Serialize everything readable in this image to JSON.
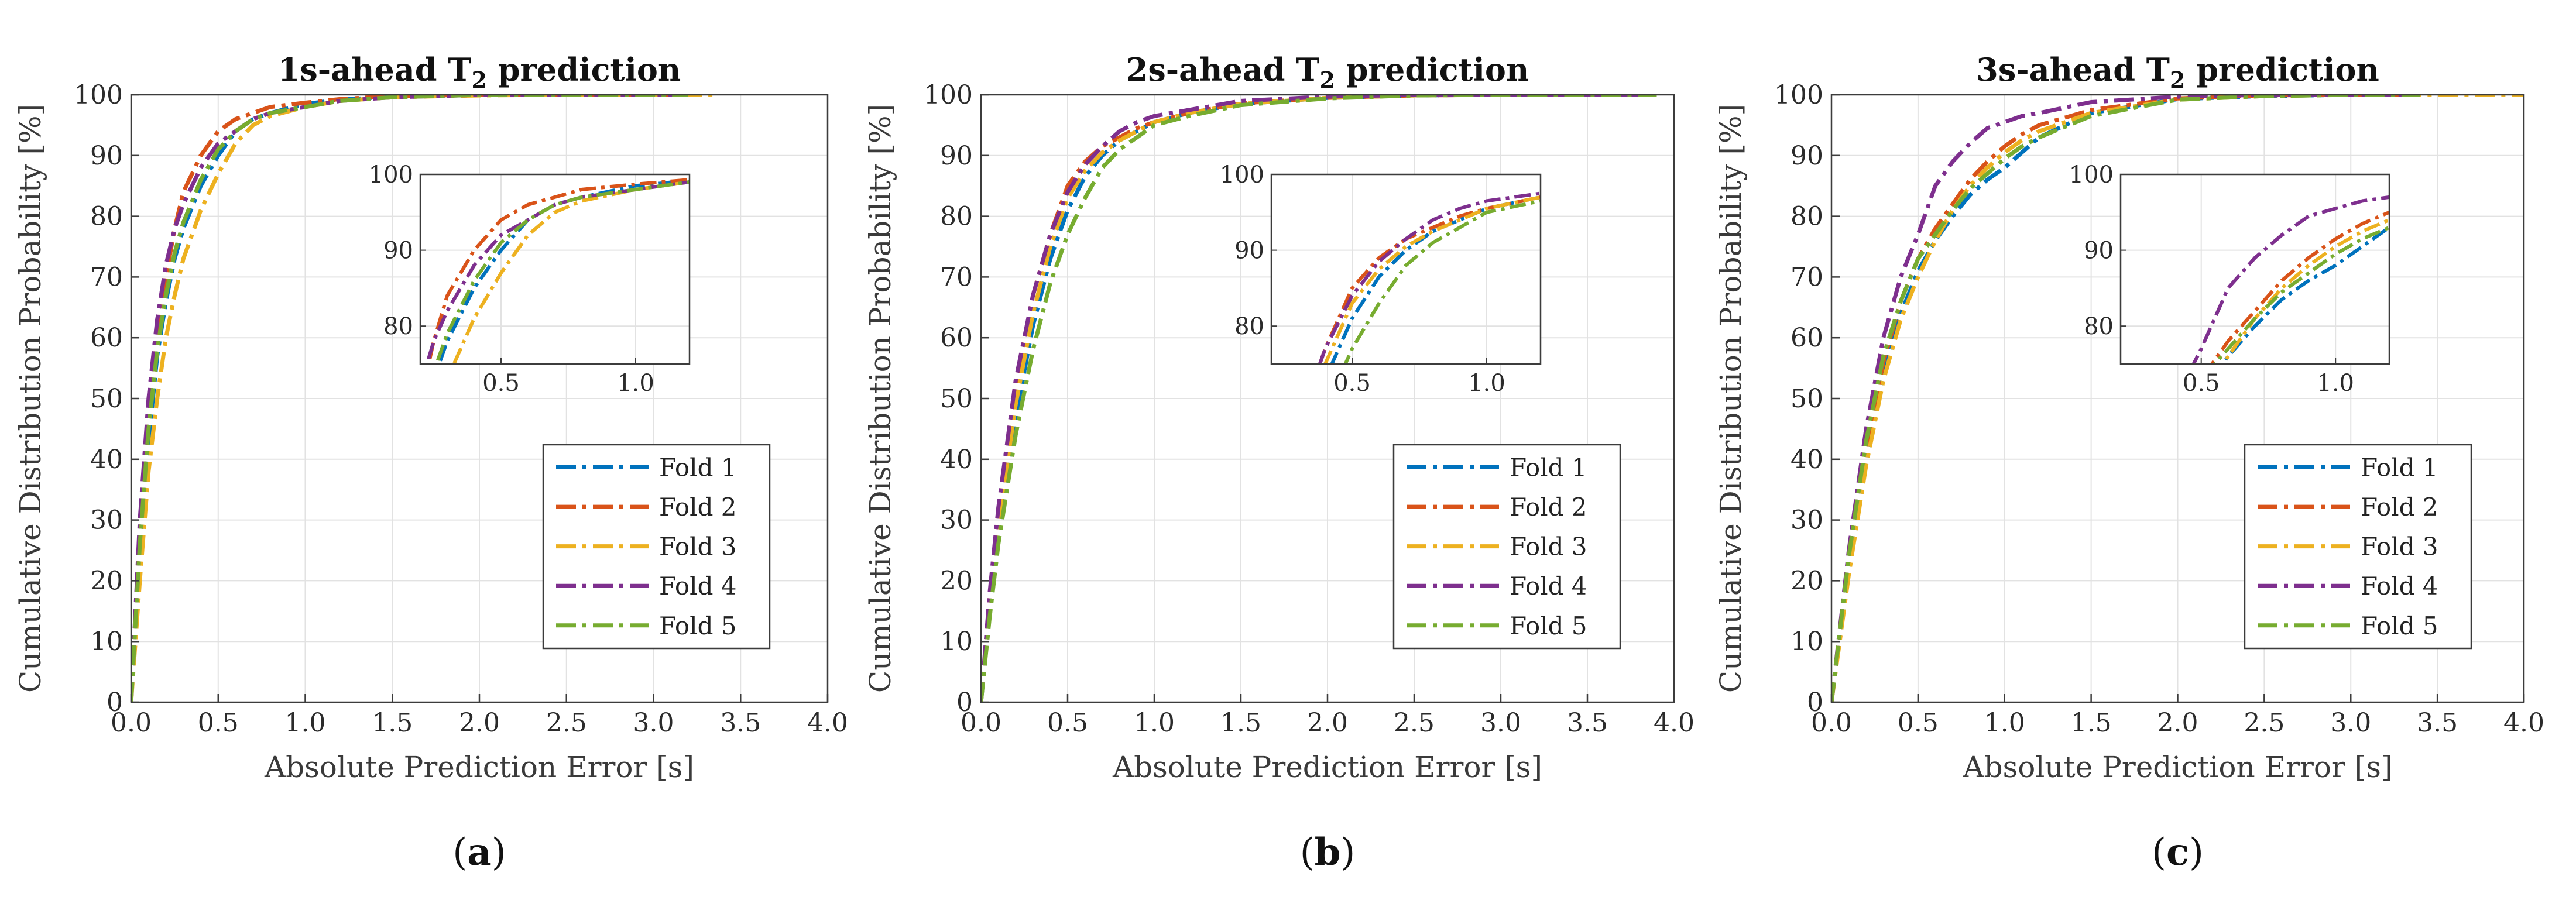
{
  "chart_data": [
    {
      "type": "line",
      "panel_label_prefix": "(",
      "panel_label": "a",
      "panel_label_suffix": ")",
      "title_prefix": "1s-ahead T",
      "title_sub": "2",
      "title_suffix": " prediction",
      "xlabel": "Absolute Prediction Error [s]",
      "ylabel": "Cumulative Distribution Probability [%]",
      "xlim": [
        0,
        4
      ],
      "ylim": [
        0,
        100
      ],
      "xticks": [
        "0.0",
        "0.5",
        "1.0",
        "1.5",
        "2.0",
        "2.5",
        "3.0",
        "3.5",
        "4.0"
      ],
      "yticks": [
        "0",
        "10",
        "20",
        "30",
        "40",
        "50",
        "60",
        "70",
        "80",
        "90",
        "100"
      ],
      "legend_position": "lower-right",
      "series": [
        {
          "name": "Fold 1",
          "color": "#0072BD",
          "x": [
            0,
            0.05,
            0.1,
            0.15,
            0.2,
            0.25,
            0.3,
            0.4,
            0.5,
            0.6,
            0.7,
            0.8,
            1.0,
            1.2,
            1.5,
            2.0,
            2.5,
            3.2
          ],
          "y": [
            0,
            25,
            43,
            57,
            66,
            73,
            78,
            85,
            90,
            94,
            96,
            97,
            98.5,
            99.2,
            99.7,
            100,
            100,
            100
          ]
        },
        {
          "name": "Fold 2",
          "color": "#D95319",
          "x": [
            0,
            0.05,
            0.1,
            0.15,
            0.2,
            0.25,
            0.3,
            0.4,
            0.5,
            0.6,
            0.7,
            0.8,
            1.0,
            1.2,
            1.5,
            2.0,
            2.5,
            3.2
          ],
          "y": [
            0,
            27,
            47,
            60,
            70,
            78,
            84,
            90,
            94,
            96,
            97,
            98,
            98.7,
            99.3,
            99.8,
            100,
            100,
            100
          ]
        },
        {
          "name": "Fold 3",
          "color": "#EDB120",
          "x": [
            0,
            0.05,
            0.1,
            0.15,
            0.2,
            0.25,
            0.3,
            0.4,
            0.5,
            0.6,
            0.7,
            0.8,
            1.0,
            1.2,
            1.5,
            2.0,
            2.5,
            3.35
          ],
          "y": [
            0,
            20,
            38,
            50,
            60,
            67,
            73,
            81,
            87,
            92,
            95,
            96.5,
            98,
            99,
            99.6,
            99.9,
            100,
            100
          ]
        },
        {
          "name": "Fold 4",
          "color": "#7E2F8E",
          "x": [
            0,
            0.05,
            0.1,
            0.15,
            0.2,
            0.25,
            0.3,
            0.4,
            0.5,
            0.6,
            0.7,
            0.8,
            1.0,
            1.2,
            1.5,
            2.0,
            2.5,
            3.2
          ],
          "y": [
            0,
            30,
            50,
            63,
            72,
            78,
            82,
            88,
            92,
            94,
            96,
            97,
            98,
            99,
            99.6,
            100,
            100,
            100
          ]
        },
        {
          "name": "Fold 5",
          "color": "#77AC30",
          "x": [
            0,
            0.05,
            0.1,
            0.15,
            0.2,
            0.25,
            0.3,
            0.4,
            0.5,
            0.6,
            0.7,
            0.8,
            1.0,
            1.2,
            1.5,
            2.0,
            2.5,
            3.2
          ],
          "y": [
            0,
            26,
            45,
            58,
            67,
            74,
            79,
            86,
            91,
            94,
            96,
            97,
            98,
            99,
            99.6,
            100,
            100,
            100
          ]
        }
      ],
      "inset": {
        "xlim": [
          0.2,
          1.2
        ],
        "ylim": [
          75,
          100
        ],
        "xticks": [
          {
            "v": 0.5,
            "label": "0.5"
          },
          {
            "v": 1.0,
            "label": "1.0"
          }
        ],
        "yticks": [
          {
            "v": 80,
            "label": "80"
          },
          {
            "v": 90,
            "label": "90"
          },
          {
            "v": 100,
            "label": "100"
          }
        ]
      }
    },
    {
      "type": "line",
      "panel_label_prefix": "(",
      "panel_label": "b",
      "panel_label_suffix": ")",
      "title_prefix": "2s-ahead T",
      "title_sub": "2",
      "title_suffix": " prediction",
      "xlabel": "Absolute Prediction Error [s]",
      "ylabel": "Cumulative Distribution Probability [%]",
      "xlim": [
        0,
        4
      ],
      "ylim": [
        0,
        100
      ],
      "xticks": [
        "0.0",
        "0.5",
        "1.0",
        "1.5",
        "2.0",
        "2.5",
        "3.0",
        "3.5",
        "4.0"
      ],
      "yticks": [
        "0",
        "10",
        "20",
        "30",
        "40",
        "50",
        "60",
        "70",
        "80",
        "90",
        "100"
      ],
      "legend_position": "lower-right",
      "series": [
        {
          "name": "Fold 1",
          "color": "#0072BD",
          "x": [
            0,
            0.05,
            0.1,
            0.2,
            0.3,
            0.4,
            0.5,
            0.6,
            0.7,
            0.8,
            0.9,
            1.0,
            1.2,
            1.5,
            2.0,
            2.5,
            3.0,
            3.9
          ],
          "y": [
            0,
            15,
            28,
            47,
            62,
            73,
            81,
            86.5,
            90,
            92.5,
            94,
            95.5,
            97,
            98.5,
            99.5,
            99.9,
            100,
            100
          ]
        },
        {
          "name": "Fold 2",
          "color": "#D95319",
          "x": [
            0,
            0.05,
            0.1,
            0.2,
            0.3,
            0.4,
            0.5,
            0.6,
            0.7,
            0.8,
            0.9,
            1.0,
            1.2,
            1.5,
            2.0,
            2.5,
            3.0,
            3.9
          ],
          "y": [
            0,
            17,
            31,
            52,
            67,
            77,
            85,
            89,
            91.5,
            93,
            94.5,
            95.5,
            97,
            98.6,
            99.5,
            99.9,
            100,
            100
          ]
        },
        {
          "name": "Fold 3",
          "color": "#EDB120",
          "x": [
            0,
            0.05,
            0.1,
            0.2,
            0.3,
            0.4,
            0.5,
            0.6,
            0.7,
            0.8,
            0.9,
            1.0,
            1.2,
            1.5,
            2.0,
            2.5,
            3.0,
            3.9
          ],
          "y": [
            0,
            16,
            29,
            49,
            64,
            75,
            83,
            87.5,
            90.5,
            92.5,
            94,
            95.5,
            97,
            98.5,
            99.5,
            99.9,
            100,
            100
          ]
        },
        {
          "name": "Fold 4",
          "color": "#7E2F8E",
          "x": [
            0,
            0.05,
            0.1,
            0.2,
            0.3,
            0.4,
            0.5,
            0.6,
            0.7,
            0.8,
            0.9,
            1.0,
            1.2,
            1.5,
            2.0,
            2.5,
            3.0,
            3.9
          ],
          "y": [
            0,
            18,
            32,
            53,
            67,
            77,
            84,
            88.5,
            91.5,
            94,
            95.5,
            96.5,
            97.5,
            99,
            99.7,
            100,
            100,
            100
          ]
        },
        {
          "name": "Fold 5",
          "color": "#77AC30",
          "x": [
            0,
            0.05,
            0.1,
            0.2,
            0.3,
            0.4,
            0.5,
            0.6,
            0.7,
            0.8,
            0.9,
            1.0,
            1.2,
            1.5,
            2.0,
            2.5,
            3.0,
            3.9
          ],
          "y": [
            0,
            14,
            26,
            44,
            58,
            69,
            77,
            83,
            88,
            91,
            93,
            95,
            96.5,
            98.3,
            99.4,
            99.9,
            100,
            100
          ]
        }
      ],
      "inset": {
        "xlim": [
          0.2,
          1.2
        ],
        "ylim": [
          75,
          100
        ],
        "xticks": [
          {
            "v": 0.5,
            "label": "0.5"
          },
          {
            "v": 1.0,
            "label": "1.0"
          }
        ],
        "yticks": [
          {
            "v": 80,
            "label": "80"
          },
          {
            "v": 90,
            "label": "90"
          },
          {
            "v": 100,
            "label": "100"
          }
        ]
      }
    },
    {
      "type": "line",
      "panel_label_prefix": "(",
      "panel_label": "c",
      "panel_label_suffix": ")",
      "title_prefix": "3s-ahead T",
      "title_sub": "2",
      "title_suffix": " prediction",
      "xlabel": "Absolute Prediction Error [s]",
      "ylabel": "Cumulative Distribution Probability [%]",
      "xlim": [
        0,
        4
      ],
      "ylim": [
        0,
        100
      ],
      "xticks": [
        "0.0",
        "0.5",
        "1.0",
        "1.5",
        "2.0",
        "2.5",
        "3.0",
        "3.5",
        "4.0"
      ],
      "yticks": [
        "0",
        "10",
        "20",
        "30",
        "40",
        "50",
        "60",
        "70",
        "80",
        "90",
        "100"
      ],
      "legend_position": "lower-right",
      "series": [
        {
          "name": "Fold 1",
          "color": "#0072BD",
          "x": [
            0,
            0.1,
            0.2,
            0.3,
            0.4,
            0.5,
            0.6,
            0.7,
            0.8,
            0.9,
            1.0,
            1.1,
            1.2,
            1.5,
            2.0,
            2.5,
            3.0,
            3.4
          ],
          "y": [
            0,
            22,
            40,
            54,
            64,
            71,
            76,
            80,
            83.5,
            86,
            88,
            90.5,
            93,
            97,
            99.3,
            99.8,
            100,
            100
          ]
        },
        {
          "name": "Fold 2",
          "color": "#D95319",
          "x": [
            0,
            0.1,
            0.2,
            0.3,
            0.4,
            0.5,
            0.6,
            0.7,
            0.8,
            0.9,
            1.0,
            1.1,
            1.2,
            1.5,
            2.0,
            2.5,
            3.0,
            3.4
          ],
          "y": [
            0,
            23,
            42,
            56,
            66,
            73,
            78,
            82,
            86,
            89,
            91.5,
            93.5,
            95,
            97.5,
            99.4,
            99.9,
            100,
            100
          ]
        },
        {
          "name": "Fold 3",
          "color": "#EDB120",
          "x": [
            0,
            0.1,
            0.2,
            0.3,
            0.4,
            0.5,
            0.6,
            0.7,
            0.8,
            0.9,
            1.0,
            1.1,
            1.2,
            1.5,
            2.0,
            2.5,
            3.0,
            4.0
          ],
          "y": [
            0,
            21,
            39,
            53,
            63,
            70,
            76,
            81,
            85,
            88,
            90.5,
            92.5,
            94,
            97,
            99.2,
            99.8,
            100,
            100
          ]
        },
        {
          "name": "Fold 4",
          "color": "#7E2F8E",
          "x": [
            0,
            0.1,
            0.2,
            0.3,
            0.4,
            0.5,
            0.6,
            0.7,
            0.8,
            0.9,
            1.0,
            1.1,
            1.2,
            1.5,
            2.0,
            2.5,
            3.0,
            3.4
          ],
          "y": [
            0,
            25,
            45,
            60,
            70,
            77,
            85,
            89,
            92,
            94.5,
            95.5,
            96.5,
            97,
            98.8,
            99.7,
            100,
            100,
            100
          ]
        },
        {
          "name": "Fold 5",
          "color": "#77AC30",
          "x": [
            0,
            0.1,
            0.2,
            0.3,
            0.4,
            0.5,
            0.6,
            0.7,
            0.8,
            0.9,
            1.0,
            1.1,
            1.2,
            1.5,
            2.0,
            2.5,
            3.0,
            3.4
          ],
          "y": [
            0,
            24,
            43,
            57,
            66,
            73,
            77,
            81,
            84.5,
            87,
            89.5,
            91.5,
            93,
            96.5,
            99.2,
            99.8,
            100,
            100
          ]
        }
      ],
      "inset": {
        "xlim": [
          0.2,
          1.2
        ],
        "ylim": [
          75,
          100
        ],
        "xticks": [
          {
            "v": 0.5,
            "label": "0.5"
          },
          {
            "v": 1.0,
            "label": "1.0"
          }
        ],
        "yticks": [
          {
            "v": 80,
            "label": "80"
          },
          {
            "v": 90,
            "label": "90"
          },
          {
            "v": 100,
            "label": "100"
          }
        ]
      }
    }
  ]
}
